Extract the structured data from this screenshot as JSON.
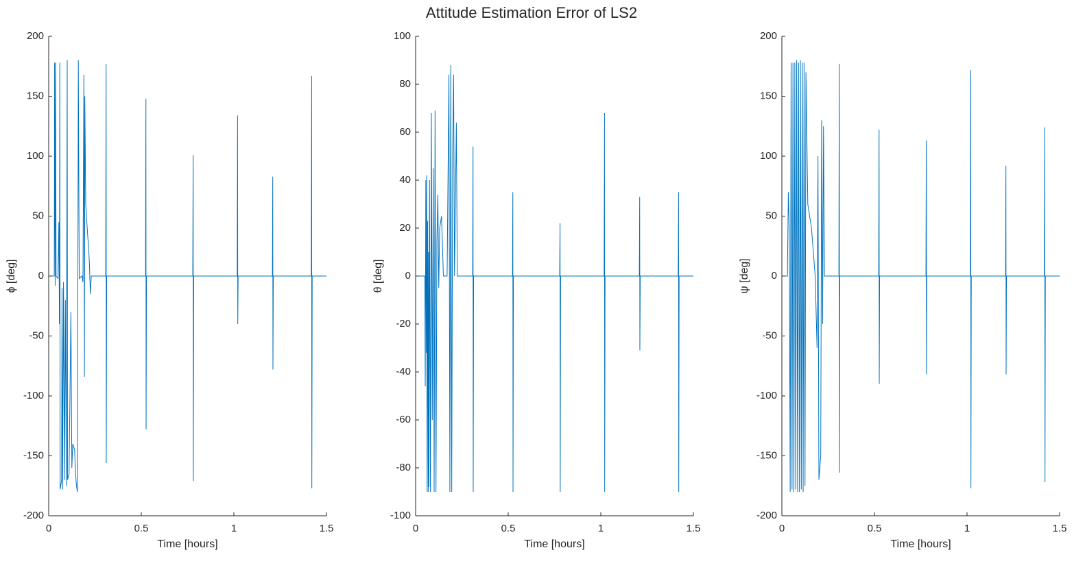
{
  "title": "Attitude Estimation Error of LS2",
  "chart_data": [
    {
      "type": "line",
      "xlabel": "Time [hours]",
      "ylabel": "ϕ [deg]",
      "xlim": [
        0,
        1.5
      ],
      "xticks": [
        0,
        0.5,
        1,
        1.5
      ],
      "ylim": [
        -200,
        200
      ],
      "yticks": [
        -200,
        -150,
        -100,
        -50,
        0,
        50,
        100,
        150,
        200
      ],
      "series": [
        {
          "color": "#0072bd",
          "x": [
            0,
            0.03,
            0.032,
            0.035,
            0.037,
            0.04,
            0.05,
            0.055,
            0.058,
            0.06,
            0.062,
            0.065,
            0.07,
            0.072,
            0.075,
            0.08,
            0.085,
            0.09,
            0.095,
            0.1,
            0.102,
            0.11,
            0.12,
            0.125,
            0.13,
            0.14,
            0.145,
            0.15,
            0.155,
            0.16,
            0.165,
            0.18,
            0.185,
            0.19,
            0.193,
            0.195,
            0.2,
            0.21,
            0.215,
            0.22,
            0.225,
            0.23,
            0.308,
            0.31,
            0.311,
            0.313,
            0.523,
            0.525,
            0.526,
            0.528,
            0.778,
            0.78,
            0.781,
            0.783,
            1.018,
            1.02,
            1.021,
            1.023,
            1.208,
            1.21,
            1.211,
            1.213,
            1.418,
            1.42,
            1.421,
            1.423,
            1.5
          ],
          "values": [
            0,
            0,
            178,
            -8,
            178,
            0,
            -2,
            45,
            -40,
            178,
            -178,
            -175,
            -170,
            -10,
            -178,
            -5,
            -170,
            -20,
            -175,
            180,
            -170,
            -165,
            -30,
            -160,
            -140,
            -145,
            -165,
            -175,
            -180,
            180,
            -2,
            0,
            -5,
            168,
            -84,
            150,
            60,
            35,
            25,
            10,
            -15,
            0,
            0,
            177,
            -156,
            0,
            0,
            148,
            -128,
            0,
            0,
            101,
            -171,
            0,
            0,
            134,
            -40,
            0,
            0,
            83,
            -78,
            0,
            0,
            167,
            -177,
            0,
            0
          ]
        }
      ]
    },
    {
      "type": "line",
      "xlabel": "Time [hours]",
      "ylabel": "θ [deg]",
      "xlim": [
        0,
        1.5
      ],
      "xticks": [
        0,
        0.5,
        1,
        1.5
      ],
      "ylim": [
        -100,
        100
      ],
      "yticks": [
        -100,
        -80,
        -60,
        -40,
        -20,
        0,
        20,
        40,
        60,
        80,
        100
      ],
      "series": [
        {
          "color": "#0072bd",
          "x": [
            0,
            0.05,
            0.052,
            0.055,
            0.058,
            0.06,
            0.062,
            0.065,
            0.068,
            0.07,
            0.072,
            0.075,
            0.08,
            0.085,
            0.09,
            0.095,
            0.1,
            0.105,
            0.11,
            0.115,
            0.12,
            0.125,
            0.13,
            0.14,
            0.15,
            0.17,
            0.18,
            0.185,
            0.19,
            0.195,
            0.2,
            0.205,
            0.21,
            0.22,
            0.225,
            0.308,
            0.31,
            0.311,
            0.313,
            0.523,
            0.525,
            0.526,
            0.528,
            0.778,
            0.78,
            0.781,
            0.783,
            1.018,
            1.02,
            1.021,
            1.023,
            1.208,
            1.21,
            1.211,
            1.213,
            1.418,
            1.42,
            1.421,
            1.423,
            1.5
          ],
          "values": [
            0,
            0,
            -46,
            40,
            -32,
            42,
            -90,
            23,
            -90,
            10,
            -88,
            40,
            -90,
            68,
            -60,
            45,
            -90,
            69,
            -90,
            15,
            34,
            -5,
            20,
            25,
            0,
            0,
            84,
            -90,
            88,
            -90,
            50,
            84,
            0,
            64,
            0,
            0,
            54,
            -90,
            0,
            0,
            35,
            -90,
            0,
            0,
            22,
            -90,
            0,
            0,
            68,
            -90,
            0,
            0,
            33,
            -31,
            0,
            0,
            35,
            -90,
            0,
            0
          ]
        }
      ]
    },
    {
      "type": "line",
      "xlabel": "Time [hours]",
      "ylabel": "ψ [deg]",
      "xlim": [
        0,
        1.5
      ],
      "xticks": [
        0,
        0.5,
        1,
        1.5
      ],
      "ylim": [
        -200,
        200
      ],
      "yticks": [
        -200,
        -150,
        -100,
        -50,
        0,
        50,
        100,
        150,
        200
      ],
      "series": [
        {
          "color": "#0072bd",
          "x": [
            0,
            0.03,
            0.035,
            0.04,
            0.045,
            0.05,
            0.055,
            0.06,
            0.065,
            0.07,
            0.075,
            0.08,
            0.085,
            0.09,
            0.095,
            0.1,
            0.105,
            0.11,
            0.115,
            0.12,
            0.125,
            0.13,
            0.14,
            0.16,
            0.17,
            0.18,
            0.19,
            0.195,
            0.2,
            0.205,
            0.21,
            0.215,
            0.22,
            0.225,
            0.23,
            0.308,
            0.31,
            0.311,
            0.313,
            0.523,
            0.525,
            0.526,
            0.528,
            0.778,
            0.78,
            0.781,
            0.783,
            1.018,
            1.02,
            1.021,
            1.023,
            1.208,
            1.21,
            1.211,
            1.213,
            1.418,
            1.42,
            1.421,
            1.423,
            1.5
          ],
          "values": [
            0,
            0,
            70,
            40,
            -180,
            178,
            -178,
            178,
            -180,
            178,
            -178,
            180,
            -180,
            178,
            -180,
            180,
            -178,
            178,
            -180,
            178,
            -175,
            170,
            60,
            40,
            20,
            0,
            -60,
            100,
            -170,
            -160,
            -150,
            130,
            -40,
            125,
            0,
            0,
            177,
            -164,
            0,
            0,
            122,
            -90,
            0,
            0,
            113,
            -82,
            0,
            0,
            172,
            -177,
            0,
            0,
            92,
            -82,
            0,
            0,
            124,
            -172,
            0,
            0
          ]
        }
      ]
    }
  ]
}
